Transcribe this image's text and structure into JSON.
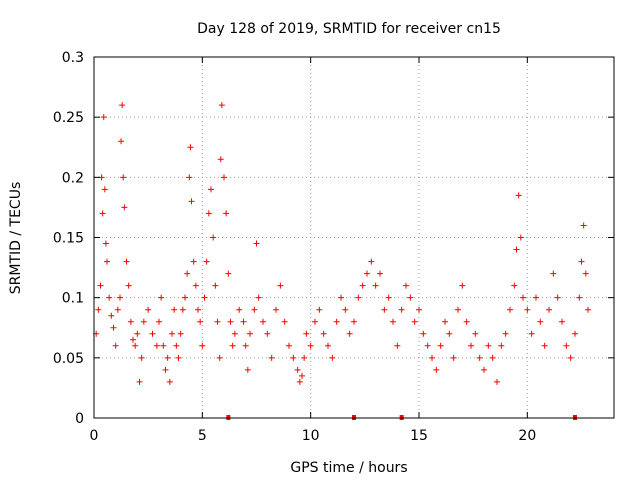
{
  "chart_data": {
    "type": "scatter",
    "title": "Day 128 of 2019, SRMTID for receiver cn15",
    "xlabel": "GPS time / hours",
    "ylabel": "SRMTID / TECUs",
    "xlim": [
      0,
      24
    ],
    "ylim": [
      0,
      0.3
    ],
    "x_ticks": [
      0,
      5,
      10,
      15,
      20
    ],
    "x_tick_labels": [
      "0",
      "5",
      "10",
      "15",
      "20"
    ],
    "y_ticks": [
      0,
      0.05,
      0.1,
      0.15,
      0.2,
      0.25,
      0.3
    ],
    "y_tick_labels": [
      "0",
      "0.05",
      "0.1",
      "0.15",
      "0.2",
      "0.25",
      "0.3"
    ],
    "grid": true,
    "marker": "+",
    "series": [
      {
        "name": "SRMTID",
        "color": "#ff0000",
        "points": [
          [
            0.1,
            0.07
          ],
          [
            0.2,
            0.09
          ],
          [
            0.3,
            0.11
          ],
          [
            0.35,
            0.2
          ],
          [
            0.4,
            0.17
          ],
          [
            0.45,
            0.25
          ],
          [
            0.5,
            0.19
          ],
          [
            0.55,
            0.145
          ],
          [
            0.6,
            0.13
          ],
          [
            0.7,
            0.1
          ],
          [
            0.8,
            0.085
          ],
          [
            0.9,
            0.075
          ],
          [
            1.0,
            0.06
          ],
          [
            1.1,
            0.09
          ],
          [
            1.2,
            0.1
          ],
          [
            1.25,
            0.23
          ],
          [
            1.3,
            0.26
          ],
          [
            1.35,
            0.2
          ],
          [
            1.4,
            0.175
          ],
          [
            1.5,
            0.13
          ],
          [
            1.6,
            0.11
          ],
          [
            1.7,
            0.08
          ],
          [
            1.8,
            0.065
          ],
          [
            1.9,
            0.06
          ],
          [
            2.0,
            0.07
          ],
          [
            2.1,
            0.03
          ],
          [
            2.2,
            0.05
          ],
          [
            2.3,
            0.08
          ],
          [
            2.5,
            0.09
          ],
          [
            2.7,
            0.07
          ],
          [
            2.9,
            0.06
          ],
          [
            3.0,
            0.08
          ],
          [
            3.1,
            0.1
          ],
          [
            3.2,
            0.06
          ],
          [
            3.3,
            0.04
          ],
          [
            3.4,
            0.05
          ],
          [
            3.5,
            0.03
          ],
          [
            3.6,
            0.07
          ],
          [
            3.7,
            0.09
          ],
          [
            3.8,
            0.06
          ],
          [
            3.9,
            0.05
          ],
          [
            4.0,
            0.07
          ],
          [
            4.1,
            0.09
          ],
          [
            4.2,
            0.1
          ],
          [
            4.3,
            0.12
          ],
          [
            4.4,
            0.2
          ],
          [
            4.45,
            0.225
          ],
          [
            4.5,
            0.18
          ],
          [
            4.6,
            0.13
          ],
          [
            4.7,
            0.11
          ],
          [
            4.8,
            0.09
          ],
          [
            4.9,
            0.08
          ],
          [
            5.0,
            0.06
          ],
          [
            5.1,
            0.1
          ],
          [
            5.2,
            0.13
          ],
          [
            5.3,
            0.17
          ],
          [
            5.4,
            0.19
          ],
          [
            5.5,
            0.15
          ],
          [
            5.6,
            0.11
          ],
          [
            5.7,
            0.08
          ],
          [
            5.8,
            0.05
          ],
          [
            5.85,
            0.215
          ],
          [
            5.9,
            0.26
          ],
          [
            6.0,
            0.2
          ],
          [
            6.1,
            0.17
          ],
          [
            6.2,
            0.12
          ],
          [
            6.3,
            0.08
          ],
          [
            6.4,
            0.06
          ],
          [
            6.5,
            0.07
          ],
          [
            6.7,
            0.09
          ],
          [
            6.9,
            0.08
          ],
          [
            7.0,
            0.06
          ],
          [
            7.1,
            0.04
          ],
          [
            7.2,
            0.07
          ],
          [
            7.4,
            0.09
          ],
          [
            7.5,
            0.145
          ],
          [
            7.6,
            0.1
          ],
          [
            7.8,
            0.08
          ],
          [
            8.0,
            0.07
          ],
          [
            8.2,
            0.05
          ],
          [
            8.4,
            0.09
          ],
          [
            8.6,
            0.11
          ],
          [
            8.8,
            0.08
          ],
          [
            9.0,
            0.06
          ],
          [
            9.2,
            0.05
          ],
          [
            9.4,
            0.04
          ],
          [
            9.5,
            0.03
          ],
          [
            9.6,
            0.035
          ],
          [
            9.7,
            0.05
          ],
          [
            9.8,
            0.07
          ],
          [
            10.0,
            0.06
          ],
          [
            10.2,
            0.08
          ],
          [
            10.4,
            0.09
          ],
          [
            10.6,
            0.07
          ],
          [
            10.8,
            0.06
          ],
          [
            11.0,
            0.05
          ],
          [
            11.2,
            0.08
          ],
          [
            11.4,
            0.1
          ],
          [
            11.6,
            0.09
          ],
          [
            11.8,
            0.07
          ],
          [
            12.0,
            0.08
          ],
          [
            12.2,
            0.1
          ],
          [
            12.4,
            0.11
          ],
          [
            12.6,
            0.12
          ],
          [
            12.8,
            0.13
          ],
          [
            13.0,
            0.11
          ],
          [
            13.2,
            0.12
          ],
          [
            13.4,
            0.09
          ],
          [
            13.6,
            0.1
          ],
          [
            13.8,
            0.08
          ],
          [
            14.0,
            0.06
          ],
          [
            14.2,
            0.09
          ],
          [
            14.4,
            0.11
          ],
          [
            14.6,
            0.1
          ],
          [
            14.8,
            0.08
          ],
          [
            15.0,
            0.09
          ],
          [
            15.2,
            0.07
          ],
          [
            15.4,
            0.06
          ],
          [
            15.6,
            0.05
          ],
          [
            15.8,
            0.04
          ],
          [
            16.0,
            0.06
          ],
          [
            16.2,
            0.08
          ],
          [
            16.4,
            0.07
          ],
          [
            16.6,
            0.05
          ],
          [
            16.8,
            0.09
          ],
          [
            17.0,
            0.11
          ],
          [
            17.2,
            0.08
          ],
          [
            17.4,
            0.06
          ],
          [
            17.6,
            0.07
          ],
          [
            17.8,
            0.05
          ],
          [
            18.0,
            0.04
          ],
          [
            18.2,
            0.06
          ],
          [
            18.4,
            0.05
          ],
          [
            18.6,
            0.03
          ],
          [
            18.8,
            0.06
          ],
          [
            19.0,
            0.07
          ],
          [
            19.2,
            0.09
          ],
          [
            19.4,
            0.11
          ],
          [
            19.5,
            0.14
          ],
          [
            19.6,
            0.185
          ],
          [
            19.7,
            0.15
          ],
          [
            19.8,
            0.1
          ],
          [
            20.0,
            0.09
          ],
          [
            20.2,
            0.07
          ],
          [
            20.4,
            0.1
          ],
          [
            20.6,
            0.08
          ],
          [
            20.8,
            0.06
          ],
          [
            21.0,
            0.09
          ],
          [
            21.2,
            0.12
          ],
          [
            21.4,
            0.1
          ],
          [
            21.6,
            0.08
          ],
          [
            21.8,
            0.06
          ],
          [
            22.0,
            0.05
          ],
          [
            22.2,
            0.07
          ],
          [
            22.4,
            0.1
          ],
          [
            22.5,
            0.13
          ],
          [
            22.6,
            0.16
          ],
          [
            22.7,
            0.12
          ],
          [
            22.8,
            0.09
          ]
        ]
      }
    ],
    "baseline_markers": [
      6.2,
      12.0,
      14.2,
      22.2
    ]
  }
}
